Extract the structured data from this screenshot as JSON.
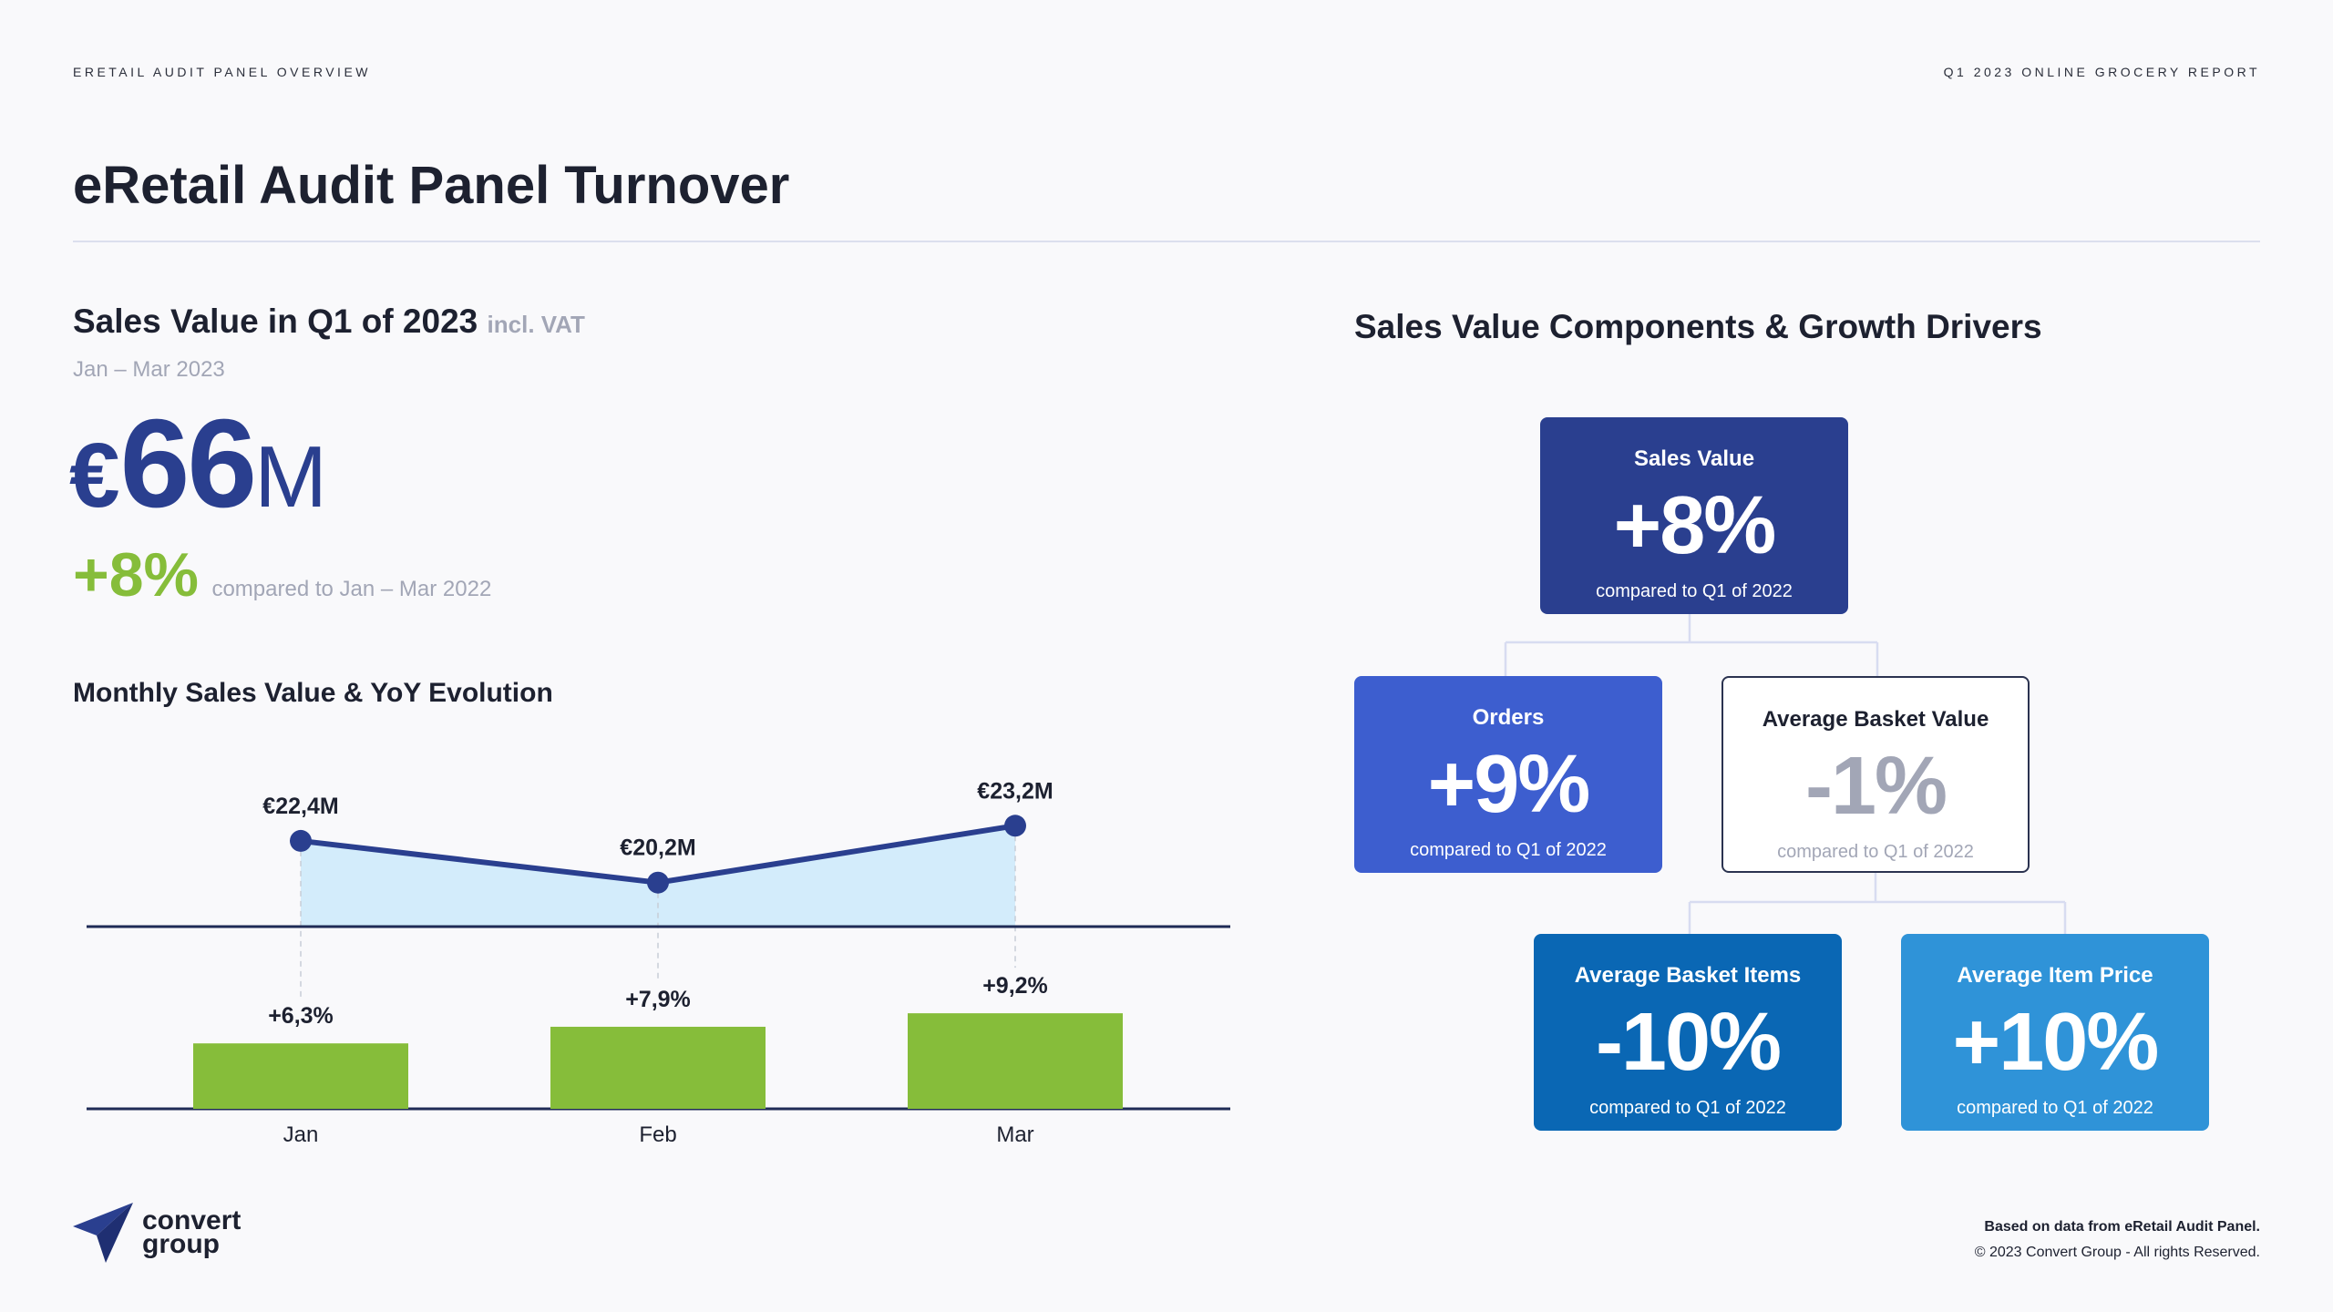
{
  "header": {
    "left_kicker": "ERETAIL AUDIT PANEL OVERVIEW",
    "right_kicker": "Q1 2023 ONLINE GROCERY REPORT",
    "title": "eRetail Audit Panel Turnover"
  },
  "summary": {
    "heading": "Sales Value in Q1 of 2023",
    "heading_note": "incl. VAT",
    "period": "Jan – Mar 2023",
    "currency": "€",
    "value": "66",
    "unit": "M",
    "change": "+8%",
    "change_note": "compared to Jan – Mar 2022"
  },
  "monthly": {
    "heading": "Monthly Sales Value & YoY Evolution"
  },
  "chart_data": {
    "type": "line",
    "categories": [
      "Jan",
      "Feb",
      "Mar"
    ],
    "series": [
      {
        "values": [
          22.4,
          20.2,
          23.2
        ],
        "labels": [
          "€22,4M",
          "€20,2M",
          "€23,2M"
        ],
        "style": "line-area"
      },
      {
        "values": [
          6.3,
          7.9,
          9.2
        ],
        "labels": [
          "+6,3%",
          "+7,9%",
          "+9,2%"
        ],
        "style": "bar"
      }
    ],
    "colors": {
      "line": "#2a3f8f",
      "area": "#d3ecfb",
      "bar": "#86bd3a",
      "axis": "#1f2b56"
    }
  },
  "drivers": {
    "heading": "Sales Value Components & Growth Drivers",
    "cards": [
      {
        "title": "Sales Value",
        "value": "+8%",
        "subtitle": "compared to Q1 of 2022",
        "color": "#2a3f8f"
      },
      {
        "title": "Orders",
        "value": "+9%",
        "subtitle": "compared to Q1 of 2022",
        "color": "#3d5ecf"
      },
      {
        "title": "Average Basket Value",
        "value": "-1%",
        "subtitle": "compared to Q1 of 2022",
        "color": "#ffffff"
      },
      {
        "title": "Average Basket Items",
        "value": "-10%",
        "subtitle": "compared to Q1 of 2022",
        "color": "#0a67b4"
      },
      {
        "title": "Average Item Price",
        "value": "+10%",
        "subtitle": "compared to Q1 of 2022",
        "color": "#2f93d8"
      }
    ]
  },
  "footer": {
    "logo_line1": "convert",
    "logo_line2": "group",
    "source": "Based on data from eRetail Audit Panel.",
    "copyright": "© 2023 Convert Group - All rights Reserved."
  }
}
